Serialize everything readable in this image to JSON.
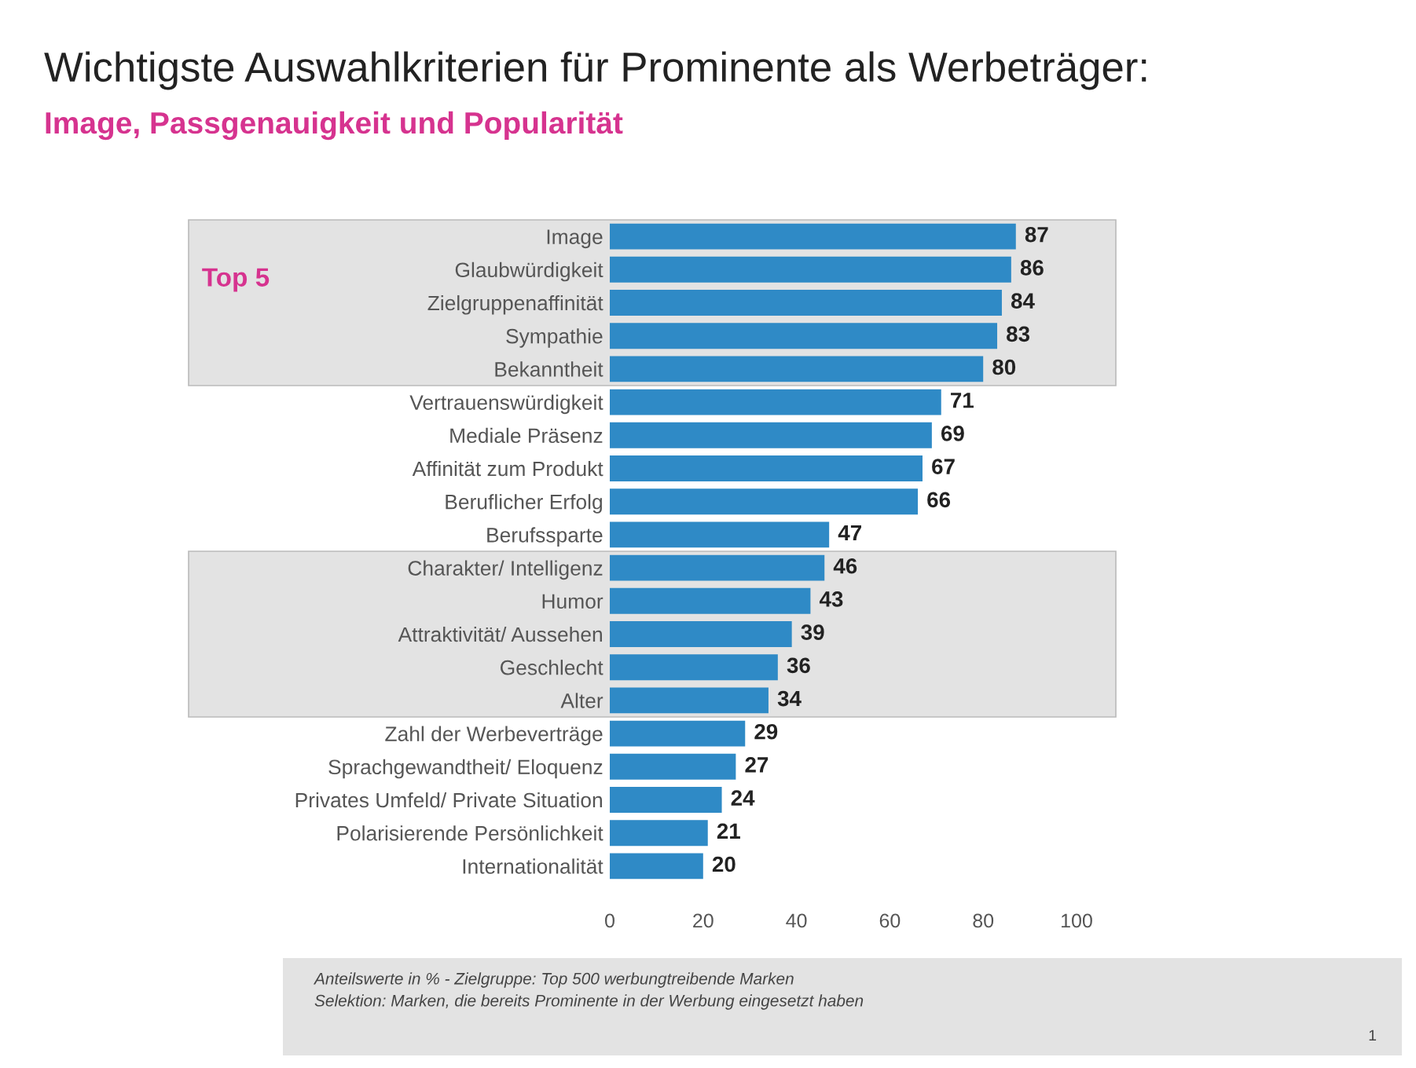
{
  "chart_data": {
    "type": "bar",
    "orientation": "horizontal",
    "title": "Wichtigste Auswahlkriterien für Prominente als Werbeträger:",
    "subtitle": "Image, Passgenauigkeit und Popularität",
    "categories": [
      "Image",
      "Glaubwürdigkeit",
      "Zielgruppenaffinität",
      "Sympathie",
      "Bekanntheit",
      "Vertrauenswürdigkeit",
      "Mediale Präsenz",
      "Affinität zum Produkt",
      "Beruflicher Erfolg",
      "Berufssparte",
      "Charakter/ Intelligenz",
      "Humor",
      "Attraktivität/ Aussehen",
      "Geschlecht",
      "Alter",
      "Zahl der Werbeverträge",
      "Sprachgewandtheit/ Eloquenz",
      "Privates Umfeld/ Private Situation",
      "Polarisierende Persönlichkeit",
      "Internationalität"
    ],
    "values": [
      87,
      86,
      84,
      83,
      80,
      71,
      69,
      67,
      66,
      47,
      46,
      43,
      39,
      36,
      34,
      29,
      27,
      24,
      21,
      20
    ],
    "color": "#2f8ac6",
    "data_labels": true,
    "xlim": [
      0,
      100
    ],
    "xticks": [
      0,
      20,
      40,
      60,
      80,
      100
    ],
    "grid": false,
    "legend": false,
    "bands": [
      {
        "axis": "y",
        "from": "Image",
        "to": "Bekanntheit",
        "label": "Top 5",
        "color": "#e3e3e3"
      },
      {
        "axis": "y",
        "from": "Charakter/ Intelligenz",
        "to": "Alter",
        "label": null,
        "color": "#e3e3e3"
      }
    ],
    "annotations": [
      "Anteilswerte in % - Zielgruppe: Top 500 werbungtreibende Marken",
      "Selektion: Marken, die bereits Prominente in der Werbung eingesetzt haben",
      "1"
    ]
  }
}
